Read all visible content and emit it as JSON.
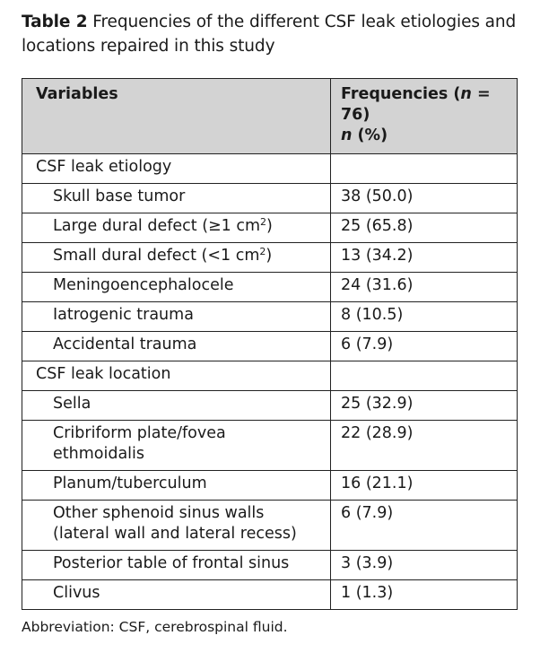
{
  "caption": {
    "label": "Table 2",
    "text": "Frequencies of the different CSF leak etiologies and locations repaired in this study"
  },
  "table": {
    "headers": {
      "variables": "Variables",
      "frequencies_prefix": "Frequencies (",
      "frequencies_n": "n",
      "frequencies_eq": " = 76)",
      "unit_n": "n",
      "unit_pct": " (%)"
    },
    "sections": [
      {
        "label": "CSF leak etiology",
        "rows": [
          {
            "label": "Skull base tumor",
            "value": "38 (50.0)"
          },
          {
            "label": "Large dural defect (≥1 cm",
            "sup": "2",
            "suffix": ")",
            "value": "25 (65.8)"
          },
          {
            "label": "Small dural defect (<1 cm",
            "sup": "2",
            "suffix": ")",
            "value": "13 (34.2)"
          },
          {
            "label": "Meningoencephalocele",
            "value": "24 (31.6)"
          },
          {
            "label": "Iatrogenic trauma",
            "value": "8 (10.5)"
          },
          {
            "label": "Accidental trauma",
            "value": "6 (7.9)"
          }
        ]
      },
      {
        "label": "CSF leak location",
        "rows": [
          {
            "label": "Sella",
            "value": "25 (32.9)"
          },
          {
            "label": "Cribriform plate/fovea ethmoidalis",
            "value": "22 (28.9)"
          },
          {
            "label": "Planum/tuberculum",
            "value": "16 (21.1)"
          },
          {
            "label": "Other sphenoid sinus walls (lateral wall and lateral recess)",
            "value": "6 (7.9)"
          },
          {
            "label": "Posterior table of frontal sinus",
            "value": "3 (3.9)"
          },
          {
            "label": "Clivus",
            "value": "1 (1.3)"
          }
        ]
      }
    ]
  },
  "footnote": "Abbreviation: CSF, cerebrospinal fluid."
}
